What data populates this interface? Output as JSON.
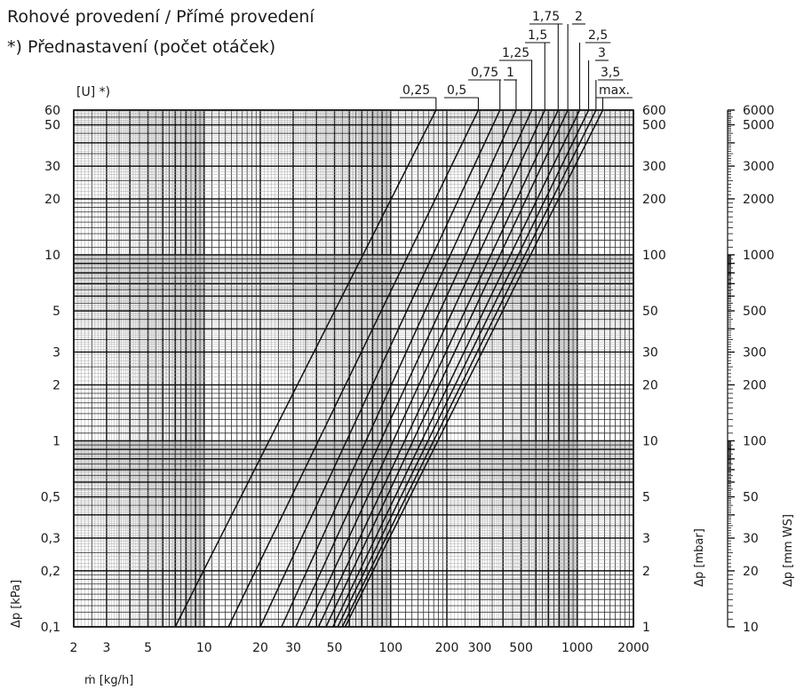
{
  "subtitle_lines": [
    "Rohové provedení / Přímé provedení",
    "*) Přednastavení (počet otáček)"
  ],
  "chart_data": {
    "type": "line",
    "xscale": "log",
    "yscale": "log",
    "xlabel": "ṁ [kg/h]",
    "ylabel": "Δp [kPa]",
    "ylabel_mbar": "Δp [mbar]",
    "ylabel_mmws": "Δp [mm WS]",
    "curve_header": "[U] *)",
    "xlim": [
      2,
      2000
    ],
    "ylim": [
      0.1,
      60
    ],
    "grid": true,
    "x_ticks": [
      2,
      3,
      5,
      10,
      20,
      30,
      50,
      100,
      200,
      300,
      500,
      1000,
      2000
    ],
    "x_tick_labels": [
      "2",
      "3",
      "5",
      "10",
      "20",
      "30",
      "50",
      "100",
      "200",
      "300",
      "500",
      "1000",
      "2000"
    ],
    "y_ticks": [
      0.1,
      0.2,
      0.3,
      0.5,
      1,
      2,
      3,
      5,
      10,
      20,
      30,
      50,
      60
    ],
    "y_tick_labels": [
      "0,1",
      "0,2",
      "0,3",
      "0,5",
      "1",
      "2",
      "3",
      "5",
      "10",
      "20",
      "30",
      "50",
      "60"
    ],
    "y_ticks_mbar": [
      1,
      2,
      3,
      5,
      10,
      20,
      30,
      50,
      100,
      200,
      300,
      500,
      600
    ],
    "y_tick_labels_mbar": [
      "1",
      "2",
      "3",
      "5",
      "10",
      "20",
      "30",
      "50",
      "100",
      "200",
      "300",
      "500",
      "600"
    ],
    "mmws_ticks": [
      10,
      20,
      30,
      50,
      100,
      200,
      300,
      500,
      1000,
      2000,
      3000,
      5000,
      6000
    ],
    "mmws_tick_labels": [
      "10",
      "20",
      "30",
      "50",
      "100",
      "200",
      "300",
      "500",
      "1000",
      "2000",
      "3000",
      "5000",
      "6000"
    ],
    "series": [
      {
        "name": "0,25",
        "points": [
          [
            7,
            0.1
          ],
          [
            175,
            60
          ]
        ]
      },
      {
        "name": "0,5",
        "points": [
          [
            13.5,
            0.1
          ],
          [
            295,
            60
          ]
        ]
      },
      {
        "name": "0,75",
        "points": [
          [
            20,
            0.1
          ],
          [
            385,
            60
          ]
        ]
      },
      {
        "name": "1",
        "points": [
          [
            26,
            0.1
          ],
          [
            470,
            60
          ]
        ]
      },
      {
        "name": "1,25",
        "points": [
          [
            31,
            0.1
          ],
          [
            570,
            60
          ]
        ]
      },
      {
        "name": "1,5",
        "points": [
          [
            36,
            0.1
          ],
          [
            670,
            60
          ]
        ]
      },
      {
        "name": "1,75",
        "points": [
          [
            41,
            0.1
          ],
          [
            790,
            60
          ]
        ]
      },
      {
        "name": "2",
        "points": [
          [
            45,
            0.1
          ],
          [
            890,
            60
          ]
        ]
      },
      {
        "name": "2,5",
        "points": [
          [
            49,
            0.1
          ],
          [
            1030,
            60
          ]
        ]
      },
      {
        "name": "3",
        "points": [
          [
            52,
            0.1
          ],
          [
            1150,
            60
          ]
        ]
      },
      {
        "name": "3,5",
        "points": [
          [
            55,
            0.1
          ],
          [
            1260,
            60
          ]
        ]
      },
      {
        "name": "max.",
        "points": [
          [
            57,
            0.1
          ],
          [
            1370,
            60
          ]
        ]
      }
    ]
  }
}
